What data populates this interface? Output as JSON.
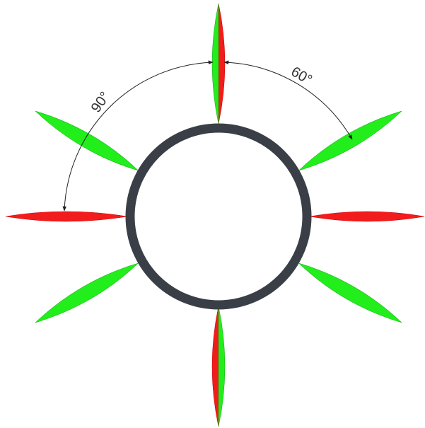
{
  "annotations": [
    {
      "label": "90°"
    },
    {
      "label": "60°"
    }
  ]
}
